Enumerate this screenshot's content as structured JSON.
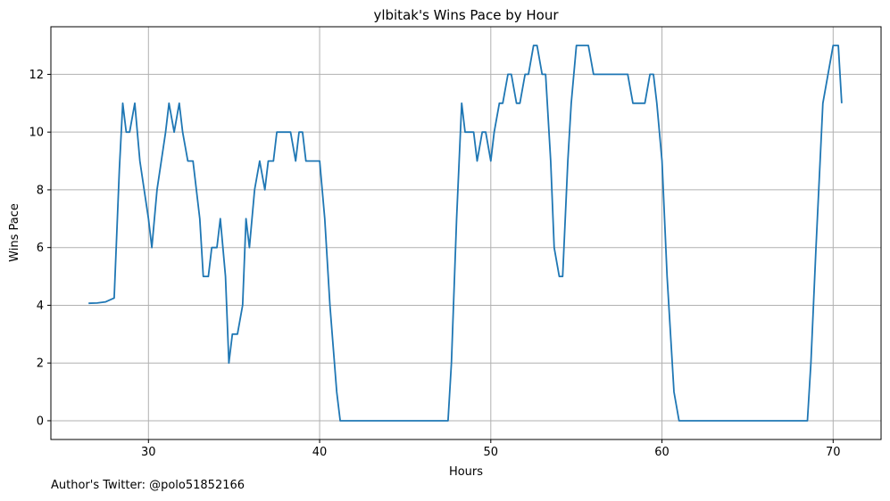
{
  "chart_data": {
    "type": "line",
    "title": "ylbitak's Wins Pace by Hour",
    "xlabel": "Hours",
    "ylabel": "Wins Pace",
    "xlim": [
      24.3,
      72.8
    ],
    "ylim": [
      -0.65,
      13.65
    ],
    "xticks": [
      30,
      40,
      50,
      60,
      70
    ],
    "yticks": [
      0,
      2,
      4,
      6,
      8,
      10,
      12
    ],
    "grid": true,
    "line_color": "#1f77b4",
    "series": [
      {
        "x": [
          26.5,
          27.0,
          27.5,
          28.0,
          28.3,
          28.5,
          28.7,
          28.9,
          29.2,
          29.5,
          30.0,
          30.2,
          30.5,
          31.0,
          31.2,
          31.5,
          31.8,
          32.0,
          32.3,
          32.6,
          33.0,
          33.2,
          33.5,
          33.7,
          34.0,
          34.2,
          34.5,
          34.7,
          34.9,
          35.2,
          35.5,
          35.7,
          35.9,
          36.2,
          36.5,
          36.8,
          37.0,
          37.3,
          37.5,
          38.0,
          38.3,
          38.6,
          38.8,
          39.0,
          39.2,
          39.5,
          40.0,
          40.3,
          40.6,
          41.0,
          41.2,
          41.5,
          45.0,
          47.5,
          47.7,
          48.0,
          48.3,
          48.5,
          48.7,
          49.0,
          49.2,
          49.5,
          49.7,
          50.0,
          50.2,
          50.5,
          50.7,
          51.0,
          51.2,
          51.5,
          51.7,
          52.0,
          52.2,
          52.5,
          52.7,
          53.0,
          53.2,
          53.5,
          53.7,
          54.0,
          54.2,
          54.5,
          54.7,
          55.0,
          55.2,
          55.5,
          55.7,
          56.0,
          56.2,
          56.5,
          57.0,
          57.5,
          58.0,
          58.3,
          58.5,
          59.0,
          59.3,
          59.5,
          59.7,
          60.0,
          60.3,
          60.7,
          61.0,
          61.2,
          65.0,
          68.5,
          68.7,
          69.0,
          69.4,
          70.0,
          70.3,
          70.5
        ],
        "y": [
          4.07,
          4.08,
          4.12,
          4.25,
          8.7,
          11,
          10,
          10,
          11,
          9,
          7,
          6,
          8,
          10,
          11,
          10,
          11,
          10,
          9,
          9,
          7,
          5,
          5,
          6,
          6,
          7,
          5,
          2,
          3,
          3,
          4,
          7,
          6,
          8,
          9,
          8,
          9,
          9,
          10,
          10,
          10,
          9,
          10,
          10,
          9,
          9,
          9,
          7,
          4,
          1,
          0,
          0,
          0,
          0,
          2,
          7,
          11,
          10,
          10,
          10,
          9,
          10,
          10,
          9,
          10,
          11,
          11,
          12,
          12,
          11,
          11,
          12,
          12,
          13,
          13,
          12,
          12,
          9,
          6,
          5,
          5,
          9,
          11,
          13,
          13,
          13,
          13,
          12,
          12,
          12,
          12,
          12,
          12,
          11,
          11,
          11,
          12,
          12,
          11,
          9,
          5,
          1,
          0,
          0,
          0,
          0,
          2,
          6,
          11,
          13,
          13,
          11
        ]
      }
    ]
  },
  "footer": {
    "note": "Author's Twitter: @polo51852166"
  }
}
